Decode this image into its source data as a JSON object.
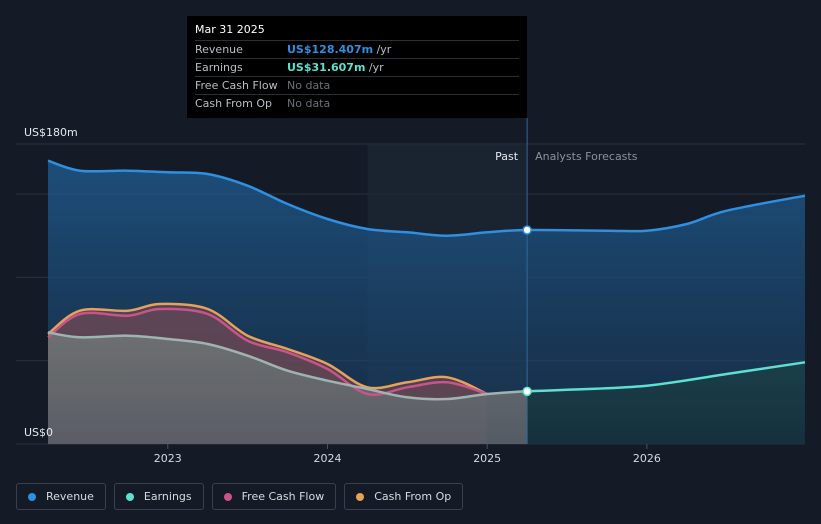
{
  "chart_data": {
    "type": "area",
    "title": "",
    "y_axis": {
      "top_label": "US$180m",
      "bottom_label": "US$0",
      "ylim": [
        0,
        180
      ]
    },
    "x_axis": {
      "ticks": [
        "2023",
        "2024",
        "2025",
        "2026"
      ],
      "xlim": [
        2022.25,
        2026.99
      ]
    },
    "past_label": "Past",
    "forecast_label": "Analysts Forecasts",
    "highlight_start": 2024.25,
    "past_end": 2025.25,
    "series": [
      {
        "name": "Revenue",
        "color": "#2f8fe0",
        "points": [
          [
            2022.25,
            170
          ],
          [
            2022.45,
            164
          ],
          [
            2022.75,
            164
          ],
          [
            2023.0,
            163
          ],
          [
            2023.25,
            162
          ],
          [
            2023.5,
            155
          ],
          [
            2023.75,
            144
          ],
          [
            2024.0,
            135
          ],
          [
            2024.25,
            129
          ],
          [
            2024.5,
            127
          ],
          [
            2024.75,
            125
          ],
          [
            2025.0,
            127
          ],
          [
            2025.25,
            128.4
          ],
          [
            2025.75,
            128
          ],
          [
            2026.0,
            128
          ],
          [
            2026.25,
            132
          ],
          [
            2026.5,
            140
          ],
          [
            2026.99,
            149
          ]
        ]
      },
      {
        "name": "Earnings",
        "color": "#5de0cf",
        "points": [
          [
            2022.25,
            67
          ],
          [
            2022.45,
            64
          ],
          [
            2022.75,
            65
          ],
          [
            2023.0,
            63
          ],
          [
            2023.25,
            60
          ],
          [
            2023.5,
            53
          ],
          [
            2023.75,
            44
          ],
          [
            2024.0,
            38
          ],
          [
            2024.25,
            33
          ],
          [
            2024.5,
            28
          ],
          [
            2024.75,
            27
          ],
          [
            2025.0,
            30
          ],
          [
            2025.25,
            31.6
          ],
          [
            2025.5,
            32.5
          ],
          [
            2026.0,
            35
          ],
          [
            2026.5,
            42
          ],
          [
            2026.99,
            49
          ]
        ]
      },
      {
        "name": "Free Cash Flow",
        "color": "#c9548a",
        "points": [
          [
            2022.25,
            64
          ],
          [
            2022.45,
            78
          ],
          [
            2022.75,
            77
          ],
          [
            2022.95,
            81
          ],
          [
            2023.25,
            78
          ],
          [
            2023.5,
            62
          ],
          [
            2023.75,
            55
          ],
          [
            2024.0,
            45
          ],
          [
            2024.25,
            30
          ],
          [
            2024.5,
            34
          ],
          [
            2024.75,
            37
          ],
          [
            2025.0,
            30
          ]
        ]
      },
      {
        "name": "Cash From Op",
        "color": "#e6a25a",
        "points": [
          [
            2022.25,
            66
          ],
          [
            2022.45,
            80
          ],
          [
            2022.75,
            80
          ],
          [
            2022.95,
            84
          ],
          [
            2023.25,
            81
          ],
          [
            2023.5,
            65
          ],
          [
            2023.75,
            57
          ],
          [
            2024.0,
            48
          ],
          [
            2024.25,
            34
          ],
          [
            2024.5,
            37
          ],
          [
            2024.75,
            40
          ],
          [
            2025.0,
            30
          ]
        ]
      }
    ],
    "markers": [
      {
        "series": "Revenue",
        "x": 2025.25,
        "y": 128.4
      },
      {
        "series": "Earnings",
        "x": 2025.25,
        "y": 31.6
      }
    ]
  },
  "tooltip": {
    "date": "Mar 31 2025",
    "rows": [
      {
        "label": "Revenue",
        "value": "US$128.407m",
        "unit": " /yr",
        "color": "#2f8fe0"
      },
      {
        "label": "Earnings",
        "value": "US$31.607m",
        "unit": " /yr",
        "color": "#5de0cf"
      },
      {
        "label": "Free Cash Flow",
        "value": "No data",
        "unit": "",
        "color": "#6b7078"
      },
      {
        "label": "Cash From Op",
        "value": "No data",
        "unit": "",
        "color": "#6b7078"
      }
    ]
  },
  "legend": [
    {
      "label": "Revenue",
      "color": "#2f8fe0"
    },
    {
      "label": "Earnings",
      "color": "#5de0cf"
    },
    {
      "label": "Free Cash Flow",
      "color": "#c9548a"
    },
    {
      "label": "Cash From Op",
      "color": "#e6a25a"
    }
  ]
}
